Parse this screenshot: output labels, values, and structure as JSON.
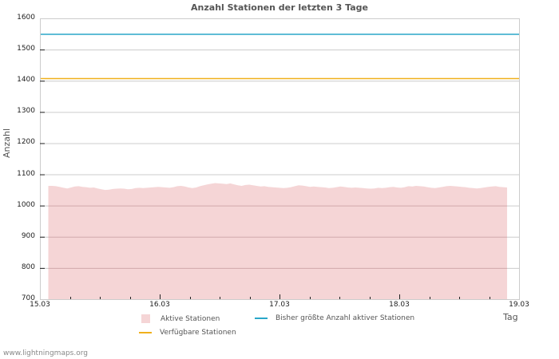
{
  "chart_data": {
    "type": "area",
    "title": "Anzahl Stationen der letzten 3 Tage",
    "xlabel": "Tag",
    "ylabel": "Anzahl",
    "ylim": [
      700,
      1600
    ],
    "xlim": [
      "15.03",
      "19.03"
    ],
    "yticks": [
      700,
      800,
      900,
      1000,
      1100,
      1200,
      1300,
      1400,
      1500,
      1600
    ],
    "xticks": [
      "15.03",
      "16.03",
      "17.03",
      "18.03",
      "19.03"
    ],
    "grid": true,
    "legend_position": "bottom",
    "series": [
      {
        "name": "Aktive Stationen",
        "kind": "area",
        "color": "#f5d5d6",
        "x_start_day": 0.07,
        "x_end_day": 3.9,
        "values": [
          1063,
          1063,
          1062,
          1060,
          1057,
          1055,
          1058,
          1061,
          1062,
          1060,
          1059,
          1057,
          1058,
          1055,
          1052,
          1050,
          1051,
          1053,
          1054,
          1055,
          1054,
          1052,
          1053,
          1056,
          1057,
          1056,
          1057,
          1058,
          1059,
          1060,
          1059,
          1058,
          1057,
          1059,
          1062,
          1063,
          1061,
          1058,
          1056,
          1058,
          1062,
          1065,
          1068,
          1070,
          1072,
          1071,
          1070,
          1069,
          1071,
          1068,
          1065,
          1063,
          1066,
          1067,
          1065,
          1063,
          1061,
          1062,
          1060,
          1059,
          1058,
          1057,
          1056,
          1057,
          1059,
          1062,
          1065,
          1064,
          1062,
          1060,
          1061,
          1060,
          1059,
          1058,
          1056,
          1057,
          1059,
          1061,
          1060,
          1058,
          1057,
          1058,
          1057,
          1056,
          1055,
          1054,
          1055,
          1057,
          1056,
          1057,
          1059,
          1060,
          1058,
          1057,
          1059,
          1062,
          1061,
          1063,
          1062,
          1061,
          1059,
          1057,
          1056,
          1058,
          1060,
          1062,
          1063,
          1062,
          1061,
          1060,
          1059,
          1057,
          1056,
          1055,
          1056,
          1058,
          1060,
          1061,
          1062,
          1060,
          1059,
          1058
        ]
      },
      {
        "name": "Bisher größte Anzahl aktiver Stationen",
        "kind": "line",
        "color": "#2aa7c9",
        "value": 1549
      },
      {
        "name": "Verfügbare Stationen",
        "kind": "line",
        "color": "#f0b01c",
        "value": 1407
      }
    ]
  },
  "legend": {
    "items": [
      {
        "label": "Aktive Stationen"
      },
      {
        "label": "Bisher größte Anzahl aktiver Stationen"
      },
      {
        "label": "Verfügbare Stationen"
      }
    ]
  },
  "footer": {
    "text": "www.lightningmaps.org"
  }
}
